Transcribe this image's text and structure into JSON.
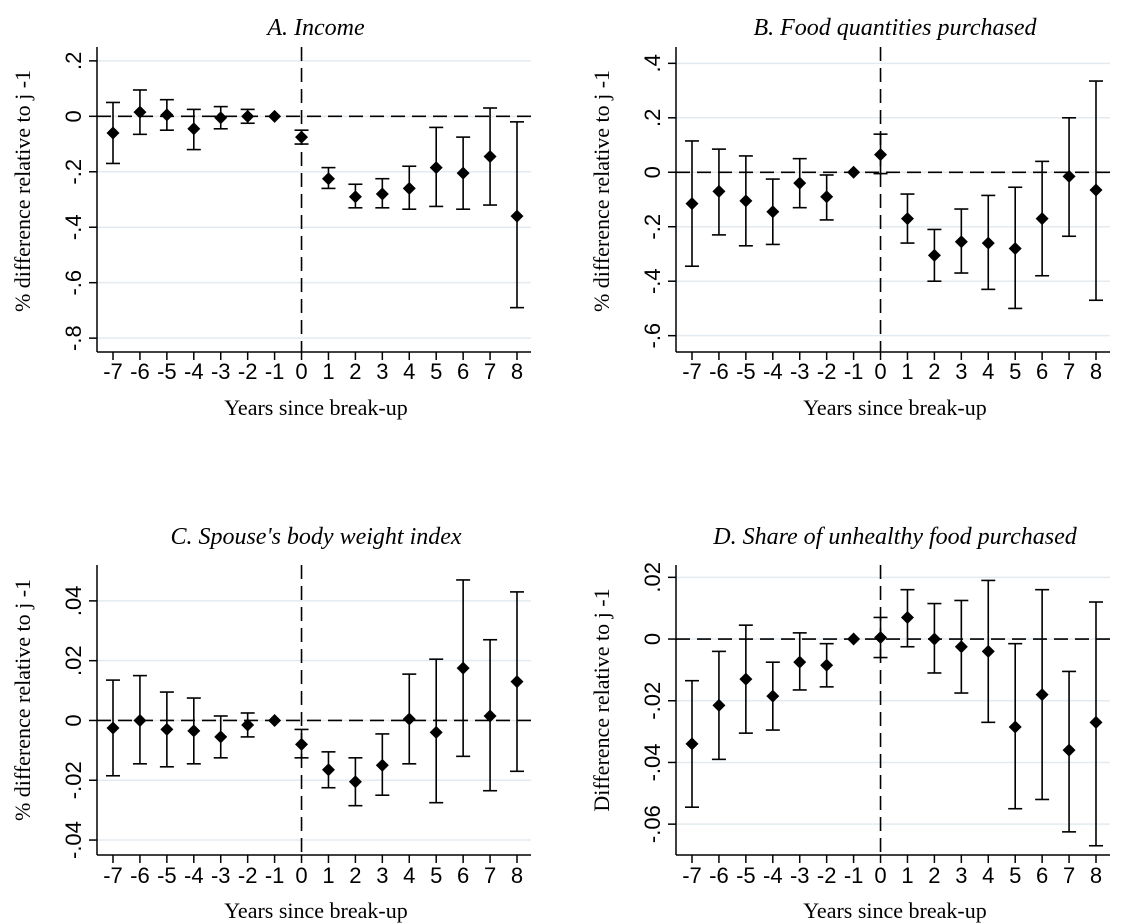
{
  "chart_data": [
    {
      "type": "scatter",
      "panel": "A",
      "title": "A. Income",
      "xlabel": "Years since break-up",
      "ylabel": "% difference relative to j -1",
      "x": [
        -7,
        -6,
        -5,
        -4,
        -3,
        -2,
        -1,
        0,
        1,
        2,
        3,
        4,
        5,
        6,
        7,
        8
      ],
      "xtick_labels": [
        "-7",
        "-6",
        "-5",
        "-4",
        "-3",
        "-2",
        "-1",
        "0",
        "1",
        "2",
        "3",
        "4",
        "5",
        "6",
        "7",
        "8"
      ],
      "ylim": [
        -0.85,
        0.25
      ],
      "yticks": [
        0.2,
        0,
        -0.2,
        -0.4,
        -0.6,
        -0.8
      ],
      "ytick_labels": [
        ".2",
        "0",
        "-.2",
        "-.4",
        "-.6",
        "-.8"
      ],
      "grid": true,
      "reference_lines": {
        "horizontal": 0,
        "vertical": 0
      },
      "series": [
        {
          "estimate": [
            -0.06,
            0.015,
            0.005,
            -0.045,
            -0.005,
            0.0,
            0.0,
            -0.075,
            -0.225,
            -0.29,
            -0.28,
            -0.26,
            -0.185,
            -0.205,
            -0.145,
            -0.36
          ],
          "ci_low": [
            -0.17,
            -0.065,
            -0.05,
            -0.12,
            -0.045,
            -0.025,
            0.0,
            -0.1,
            -0.26,
            -0.33,
            -0.33,
            -0.335,
            -0.325,
            -0.335,
            -0.32,
            -0.69
          ],
          "ci_high": [
            0.05,
            0.095,
            0.06,
            0.025,
            0.035,
            0.025,
            0.0,
            -0.05,
            -0.185,
            -0.245,
            -0.225,
            -0.18,
            -0.04,
            -0.075,
            0.03,
            -0.02
          ]
        }
      ]
    },
    {
      "type": "scatter",
      "panel": "B",
      "title": "B. Food quantities purchased",
      "xlabel": "Years since break-up",
      "ylabel": "% difference relative to j -1",
      "x": [
        -7,
        -6,
        -5,
        -4,
        -3,
        -2,
        -1,
        0,
        1,
        2,
        3,
        4,
        5,
        6,
        7,
        8
      ],
      "xtick_labels": [
        "-7",
        "-6",
        "-5",
        "-4",
        "-3",
        "-2",
        "-1",
        "0",
        "1",
        "2",
        "3",
        "4",
        "5",
        "6",
        "7",
        "8"
      ],
      "ylim": [
        -0.66,
        0.46
      ],
      "yticks": [
        0.4,
        0.2,
        0,
        -0.2,
        -0.4,
        -0.6
      ],
      "ytick_labels": [
        ".4",
        ".2",
        "0",
        "-.2",
        "-.4",
        "-.6"
      ],
      "grid": true,
      "reference_lines": {
        "horizontal": 0,
        "vertical": 0
      },
      "series": [
        {
          "estimate": [
            -0.115,
            -0.07,
            -0.105,
            -0.145,
            -0.04,
            -0.09,
            0.0,
            0.065,
            -0.17,
            -0.305,
            -0.255,
            -0.26,
            -0.28,
            -0.17,
            -0.015,
            -0.065
          ],
          "ci_low": [
            -0.345,
            -0.23,
            -0.27,
            -0.265,
            -0.13,
            -0.175,
            0.0,
            -0.005,
            -0.26,
            -0.4,
            -0.37,
            -0.43,
            -0.5,
            -0.38,
            -0.235,
            -0.47
          ],
          "ci_high": [
            0.115,
            0.085,
            0.06,
            -0.025,
            0.05,
            -0.01,
            0.0,
            0.14,
            -0.08,
            -0.21,
            -0.135,
            -0.085,
            -0.055,
            0.04,
            0.2,
            0.335
          ]
        }
      ]
    },
    {
      "type": "scatter",
      "panel": "C",
      "title": "C. Spouse's body weight index",
      "xlabel": "Years since break-up",
      "ylabel": "% difference relative to j -1",
      "x": [
        -7,
        -6,
        -5,
        -4,
        -3,
        -2,
        -1,
        0,
        1,
        2,
        3,
        4,
        5,
        6,
        7,
        8
      ],
      "xtick_labels": [
        "-7",
        "-6",
        "-5",
        "-4",
        "-3",
        "-2",
        "-1",
        "0",
        "1",
        "2",
        "3",
        "4",
        "5",
        "6",
        "7",
        "8"
      ],
      "ylim": [
        -0.045,
        0.052
      ],
      "yticks": [
        0.04,
        0.02,
        0,
        -0.02,
        -0.04
      ],
      "ytick_labels": [
        ".04",
        ".02",
        "0",
        "-.02",
        "-.04"
      ],
      "grid": true,
      "reference_lines": {
        "horizontal": 0,
        "vertical": 0
      },
      "series": [
        {
          "estimate": [
            -0.0025,
            0.0,
            -0.003,
            -0.0035,
            -0.0055,
            -0.0015,
            0.0,
            -0.008,
            -0.0165,
            -0.0205,
            -0.015,
            0.0005,
            -0.004,
            0.0175,
            0.0015,
            0.013
          ],
          "ci_low": [
            -0.0185,
            -0.0145,
            -0.0155,
            -0.0145,
            -0.0125,
            -0.0055,
            0.0,
            -0.0125,
            -0.0225,
            -0.0285,
            -0.025,
            -0.0145,
            -0.0275,
            -0.012,
            -0.0235,
            -0.017
          ],
          "ci_high": [
            0.0135,
            0.015,
            0.0095,
            0.0075,
            0.0015,
            0.0025,
            0.0,
            -0.003,
            -0.0105,
            -0.0125,
            -0.0045,
            0.0155,
            0.0205,
            0.047,
            0.027,
            0.043
          ]
        }
      ]
    },
    {
      "type": "scatter",
      "panel": "D",
      "title": "D. Share of unhealthy food purchased",
      "xlabel": "Years since break-up",
      "ylabel": "Difference relative to j -1",
      "x": [
        -7,
        -6,
        -5,
        -4,
        -3,
        -2,
        -1,
        0,
        1,
        2,
        3,
        4,
        5,
        6,
        7,
        8
      ],
      "xtick_labels": [
        "-7",
        "-6",
        "-5",
        "-4",
        "-3",
        "-2",
        "-1",
        "0",
        "1",
        "2",
        "3",
        "4",
        "5",
        "6",
        "7",
        "8"
      ],
      "ylim": [
        -0.07,
        0.024
      ],
      "yticks": [
        0.02,
        0,
        -0.02,
        -0.04,
        -0.06
      ],
      "ytick_labels": [
        ".02",
        "0",
        "-.02",
        "-.04",
        "-.06"
      ],
      "grid": true,
      "reference_lines": {
        "horizontal": 0,
        "vertical": 0
      },
      "series": [
        {
          "estimate": [
            -0.034,
            -0.0215,
            -0.013,
            -0.0185,
            -0.0075,
            -0.0085,
            0.0,
            0.0005,
            0.007,
            0.0,
            -0.0025,
            -0.004,
            -0.0285,
            -0.018,
            -0.036,
            -0.027
          ],
          "ci_low": [
            -0.0545,
            -0.039,
            -0.0305,
            -0.0295,
            -0.0165,
            -0.0155,
            0.0,
            -0.006,
            -0.0025,
            -0.011,
            -0.0175,
            -0.027,
            -0.055,
            -0.052,
            -0.0625,
            -0.067
          ],
          "ci_high": [
            -0.0135,
            -0.004,
            0.0045,
            -0.0075,
            0.002,
            -0.0015,
            0.0,
            0.007,
            0.016,
            0.0115,
            0.0125,
            0.019,
            -0.0015,
            0.016,
            -0.0105,
            0.012
          ]
        }
      ]
    }
  ]
}
